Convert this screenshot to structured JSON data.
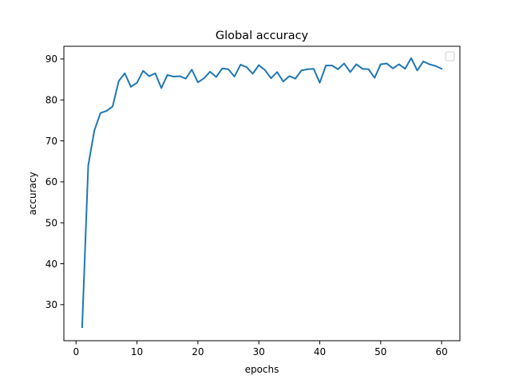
{
  "chart_data": {
    "type": "line",
    "title": "Global accuracy",
    "xlabel": "epochs",
    "ylabel": "accuracy",
    "xlim": [
      -2,
      63
    ],
    "ylim": [
      21.2,
      93.1
    ],
    "xticks": [
      0,
      10,
      20,
      30,
      40,
      50,
      60
    ],
    "yticks": [
      30,
      40,
      50,
      60,
      70,
      80,
      90
    ],
    "grid": false,
    "legend": "top-right, empty",
    "series": [
      {
        "color": "#1f77b4",
        "x": [
          1,
          2,
          3,
          4,
          5,
          6,
          7,
          8,
          9,
          10,
          11,
          12,
          13,
          14,
          15,
          16,
          17,
          18,
          19,
          20,
          21,
          22,
          23,
          24,
          25,
          26,
          27,
          28,
          29,
          30,
          31,
          32,
          33,
          34,
          35,
          36,
          37,
          38,
          39,
          40,
          41,
          42,
          43,
          44,
          45,
          46,
          47,
          48,
          49,
          50,
          51,
          52,
          53,
          54,
          55,
          56,
          57,
          58,
          59,
          60
        ],
        "values": [
          24.5,
          64.0,
          72.5,
          76.8,
          77.3,
          78.4,
          84.6,
          86.5,
          83.2,
          84.2,
          87.1,
          85.8,
          86.5,
          82.9,
          86.1,
          85.7,
          85.8,
          85.2,
          87.4,
          84.3,
          85.3,
          86.9,
          85.6,
          87.7,
          87.5,
          85.7,
          88.6,
          88.0,
          86.4,
          88.5,
          87.3,
          85.3,
          86.8,
          84.5,
          85.8,
          85.2,
          87.2,
          87.5,
          87.6,
          84.2,
          88.4,
          88.4,
          87.5,
          88.9,
          86.8,
          88.7,
          87.6,
          87.5,
          85.4,
          88.7,
          88.9,
          87.7,
          88.7,
          87.6,
          90.2,
          87.2,
          89.4,
          88.7,
          88.3,
          87.6
        ]
      }
    ]
  }
}
